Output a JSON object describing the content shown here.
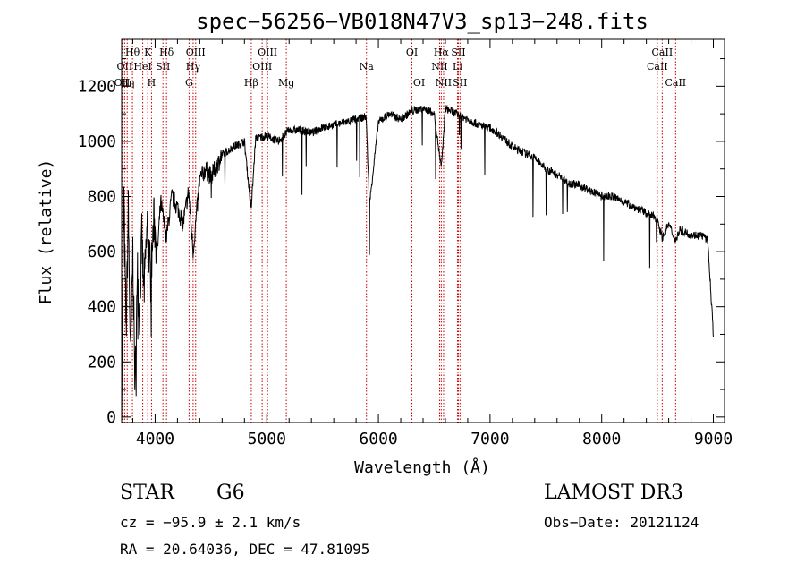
{
  "colors": {
    "spectrum": "#000000",
    "line_marker": "#cc0000",
    "axis": "#000000"
  },
  "chart_data": {
    "type": "line",
    "title": "spec−56256−VB018N47V3_sp13−248.fits",
    "xlabel": "Wavelength (Å)",
    "ylabel": "Flux (relative)",
    "xlim": [
      3700,
      9100
    ],
    "ylim": [
      -20,
      1370
    ],
    "xticks": [
      4000,
      5000,
      6000,
      7000,
      8000,
      9000
    ],
    "yticks": [
      0,
      200,
      400,
      600,
      800,
      1000,
      1200
    ],
    "grid": false,
    "series": [
      {
        "name": "spectrum",
        "x": [
          3700,
          3720,
          3740,
          3760,
          3780,
          3800,
          3820,
          3840,
          3860,
          3880,
          3900,
          3930,
          3960,
          3990,
          4020,
          4050,
          4100,
          4150,
          4200,
          4250,
          4300,
          4340,
          4400,
          4450,
          4500,
          4600,
          4700,
          4800,
          4860,
          4900,
          5000,
          5100,
          5200,
          5300,
          5400,
          5500,
          5600,
          5700,
          5800,
          5890,
          5920,
          6000,
          6100,
          6200,
          6300,
          6400,
          6500,
          6563,
          6600,
          6650,
          6700,
          6800,
          6900,
          7000,
          7100,
          7200,
          7300,
          7400,
          7500,
          7600,
          7700,
          7800,
          7900,
          8000,
          8100,
          8200,
          8300,
          8400,
          8498,
          8542,
          8600,
          8662,
          8700,
          8800,
          8900,
          8950,
          9000
        ],
        "values": [
          40,
          800,
          300,
          750,
          200,
          600,
          100,
          550,
          350,
          650,
          450,
          700,
          500,
          720,
          600,
          780,
          650,
          800,
          760,
          700,
          820,
          600,
          860,
          900,
          870,
          950,
          980,
          1000,
          750,
          1010,
          1020,
          1000,
          1040,
          1040,
          1030,
          1050,
          1060,
          1070,
          1080,
          1090,
          770,
          1070,
          1100,
          1080,
          1110,
          1120,
          1100,
          900,
          1120,
          1110,
          1100,
          1080,
          1060,
          1050,
          1020,
          980,
          960,
          940,
          900,
          880,
          850,
          840,
          820,
          800,
          800,
          780,
          760,
          740,
          720,
          650,
          700,
          640,
          680,
          660,
          660,
          640,
          300
        ]
      }
    ],
    "line_labels": [
      {
        "wl": 3704,
        "label": "OII",
        "row": 3
      },
      {
        "wl": 3727,
        "label": "OII",
        "row": 2
      },
      {
        "wl": 3750,
        "label": "Hη",
        "row": 3
      },
      {
        "wl": 3797,
        "label": "Hθ",
        "row": 1
      },
      {
        "wl": 3889,
        "label": "HeI",
        "row": 2
      },
      {
        "wl": 3934,
        "label": "K",
        "row": 1
      },
      {
        "wl": 3968,
        "label": "H",
        "row": 3
      },
      {
        "wl": 4070,
        "label": "SII",
        "row": 2
      },
      {
        "wl": 4102,
        "label": "Hδ",
        "row": 1
      },
      {
        "wl": 4304,
        "label": "G",
        "row": 3
      },
      {
        "wl": 4340,
        "label": "Hγ",
        "row": 2
      },
      {
        "wl": 4363,
        "label": "OIII",
        "row": 1
      },
      {
        "wl": 4861,
        "label": "Hβ",
        "row": 3
      },
      {
        "wl": 4959,
        "label": "OIII",
        "row": 2
      },
      {
        "wl": 5007,
        "label": "OIII",
        "row": 1
      },
      {
        "wl": 5175,
        "label": "Mg",
        "row": 3
      },
      {
        "wl": 5893,
        "label": "Na",
        "row": 2
      },
      {
        "wl": 6300,
        "label": "OI",
        "row": 1
      },
      {
        "wl": 6364,
        "label": "OI",
        "row": 3
      },
      {
        "wl": 6548,
        "label": "NII",
        "row": 2
      },
      {
        "wl": 6563,
        "label": "Hα",
        "row": 1
      },
      {
        "wl": 6584,
        "label": "NII",
        "row": 3
      },
      {
        "wl": 6708,
        "label": "Li",
        "row": 2
      },
      {
        "wl": 6716,
        "label": "SII",
        "row": 1
      },
      {
        "wl": 6731,
        "label": "SII",
        "row": 3
      },
      {
        "wl": 8498,
        "label": "CaII",
        "row": 2
      },
      {
        "wl": 8542,
        "label": "CaII",
        "row": 1
      },
      {
        "wl": 8662,
        "label": "CaII",
        "row": 3
      }
    ]
  },
  "info": {
    "object_class": "STAR",
    "subclass": "G6",
    "survey": "LAMOST DR3",
    "cz": "cz = −95.9 ± 2.1 km/s",
    "obs_date": "Obs−Date: 20121124",
    "coords": "RA =  20.64036, DEC =  47.81095"
  }
}
